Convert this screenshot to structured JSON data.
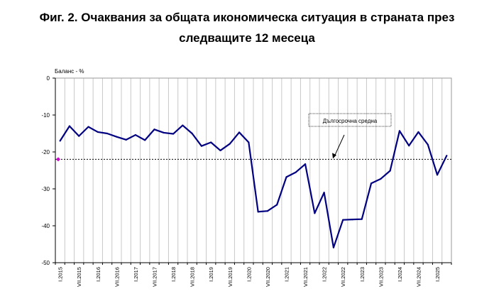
{
  "chart_data": {
    "type": "line",
    "title_line1": "Фиг. 2. Очаквания за общата икономическа ситуация в страната през",
    "title_line2": "следващите 12 месеца",
    "ylabel": "Баланс - %",
    "ylim": [
      -50,
      0
    ],
    "yticks": [
      0,
      -10,
      -20,
      -30,
      -40,
      -50
    ],
    "grid": "vertical",
    "x_tick_labels": [
      "I.2015",
      "VII.2015",
      "I.2016",
      "VII.2016",
      "I.2017",
      "VII.2017",
      "I.2018",
      "VII.2018",
      "I.2019",
      "VII.2019",
      "I.2020",
      "VII.2020",
      "I.2021",
      "VII.2021",
      "I.2022",
      "VII.2022",
      "I.2023",
      "VII.2023",
      "I.2024",
      "VII.2024",
      "I.2025"
    ],
    "x": [
      "I.2015",
      "IV.2015",
      "VII.2015",
      "X.2015",
      "I.2016",
      "IV.2016",
      "VII.2016",
      "X.2016",
      "I.2017",
      "IV.2017",
      "VII.2017",
      "X.2017",
      "I.2018",
      "IV.2018",
      "VII.2018",
      "X.2018",
      "I.2019",
      "IV.2019",
      "VII.2019",
      "X.2019",
      "I.2020",
      "IV.2020",
      "VII.2020",
      "X.2020",
      "I.2021",
      "IV.2021",
      "VII.2021",
      "X.2021",
      "I.2022",
      "IV.2022",
      "VII.2022",
      "X.2022",
      "I.2023",
      "IV.2023",
      "VII.2023",
      "X.2023",
      "I.2024",
      "IV.2024",
      "VII.2024",
      "X.2024",
      "I.2025",
      "IV.2025"
    ],
    "series": [
      {
        "color": "#000080",
        "values": [
          -17,
          -13,
          -15.7,
          -13.2,
          -14.6,
          -15,
          -15.9,
          -16.7,
          -15.4,
          -16.8,
          -13.9,
          -14.8,
          -15.1,
          -12.8,
          -15,
          -18.4,
          -17.4,
          -19.6,
          -17.8,
          -14.7,
          -17.4,
          -36.2,
          -36,
          -34.3,
          -26.8,
          -25.5,
          -23.3,
          -36.6,
          -31,
          -45.9,
          -38.4,
          -38.3,
          -38.2,
          -28.5,
          -27.3,
          -25.1,
          -14.3,
          -18.3,
          -14.6,
          -18,
          -26.2,
          -21
        ]
      }
    ],
    "reference_line": {
      "value": -22,
      "label": "Дългосрочна средна",
      "color": "#000000"
    },
    "marker": {
      "value": -22,
      "color": "#cc00cc"
    }
  }
}
